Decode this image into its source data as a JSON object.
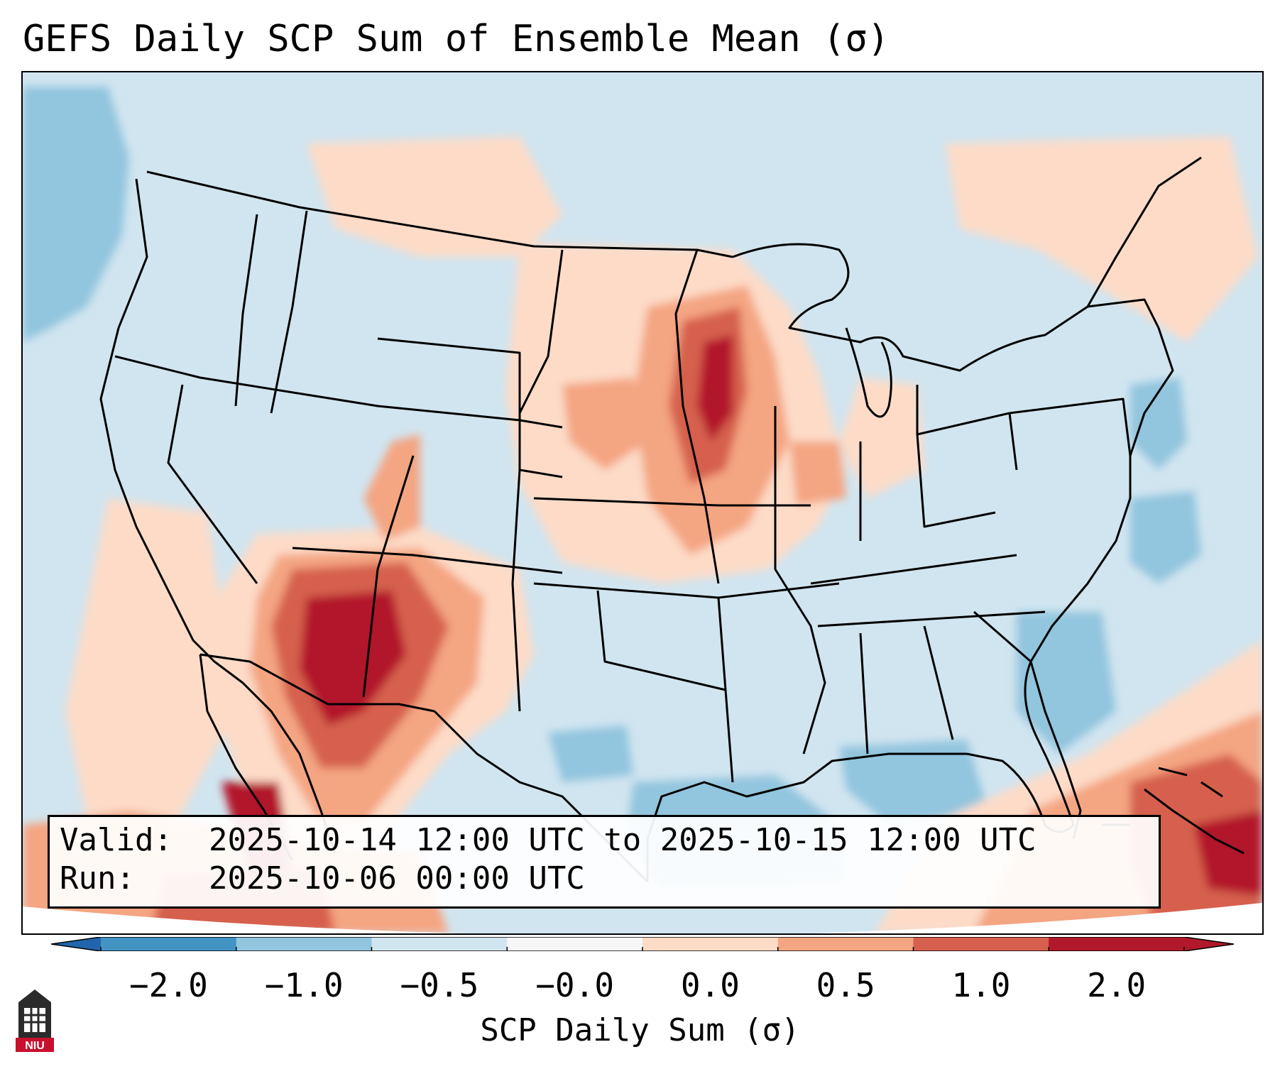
{
  "title": "GEFS Daily SCP Sum of Ensemble Mean (σ)",
  "info": {
    "valid_label": "Valid:",
    "valid_value": "2025-10-14 12:00 UTC to 2025-10-15 12:00 UTC",
    "run_label": "Run:",
    "run_value": "2025-10-06 00:00 UTC"
  },
  "colorbar": {
    "label": "SCP Daily Sum (σ)",
    "ticks": [
      "−2.0",
      "−1.0",
      "−0.5",
      "−0.0",
      "0.0",
      "0.5",
      "1.0",
      "2.0"
    ],
    "colors": [
      "#4393c3",
      "#92c5de",
      "#d1e5f0",
      "#f7f7f7",
      "#fddbc7",
      "#f4a582",
      "#d6604d",
      "#b2182b"
    ],
    "extend_low_color": "#2166ac",
    "extend_high_color": "#b2182b"
  },
  "map": {
    "background_color": "#d1e5f0",
    "coastline_color": "#000000"
  },
  "logo": {
    "text": "NIU",
    "color": "#c8102e"
  }
}
